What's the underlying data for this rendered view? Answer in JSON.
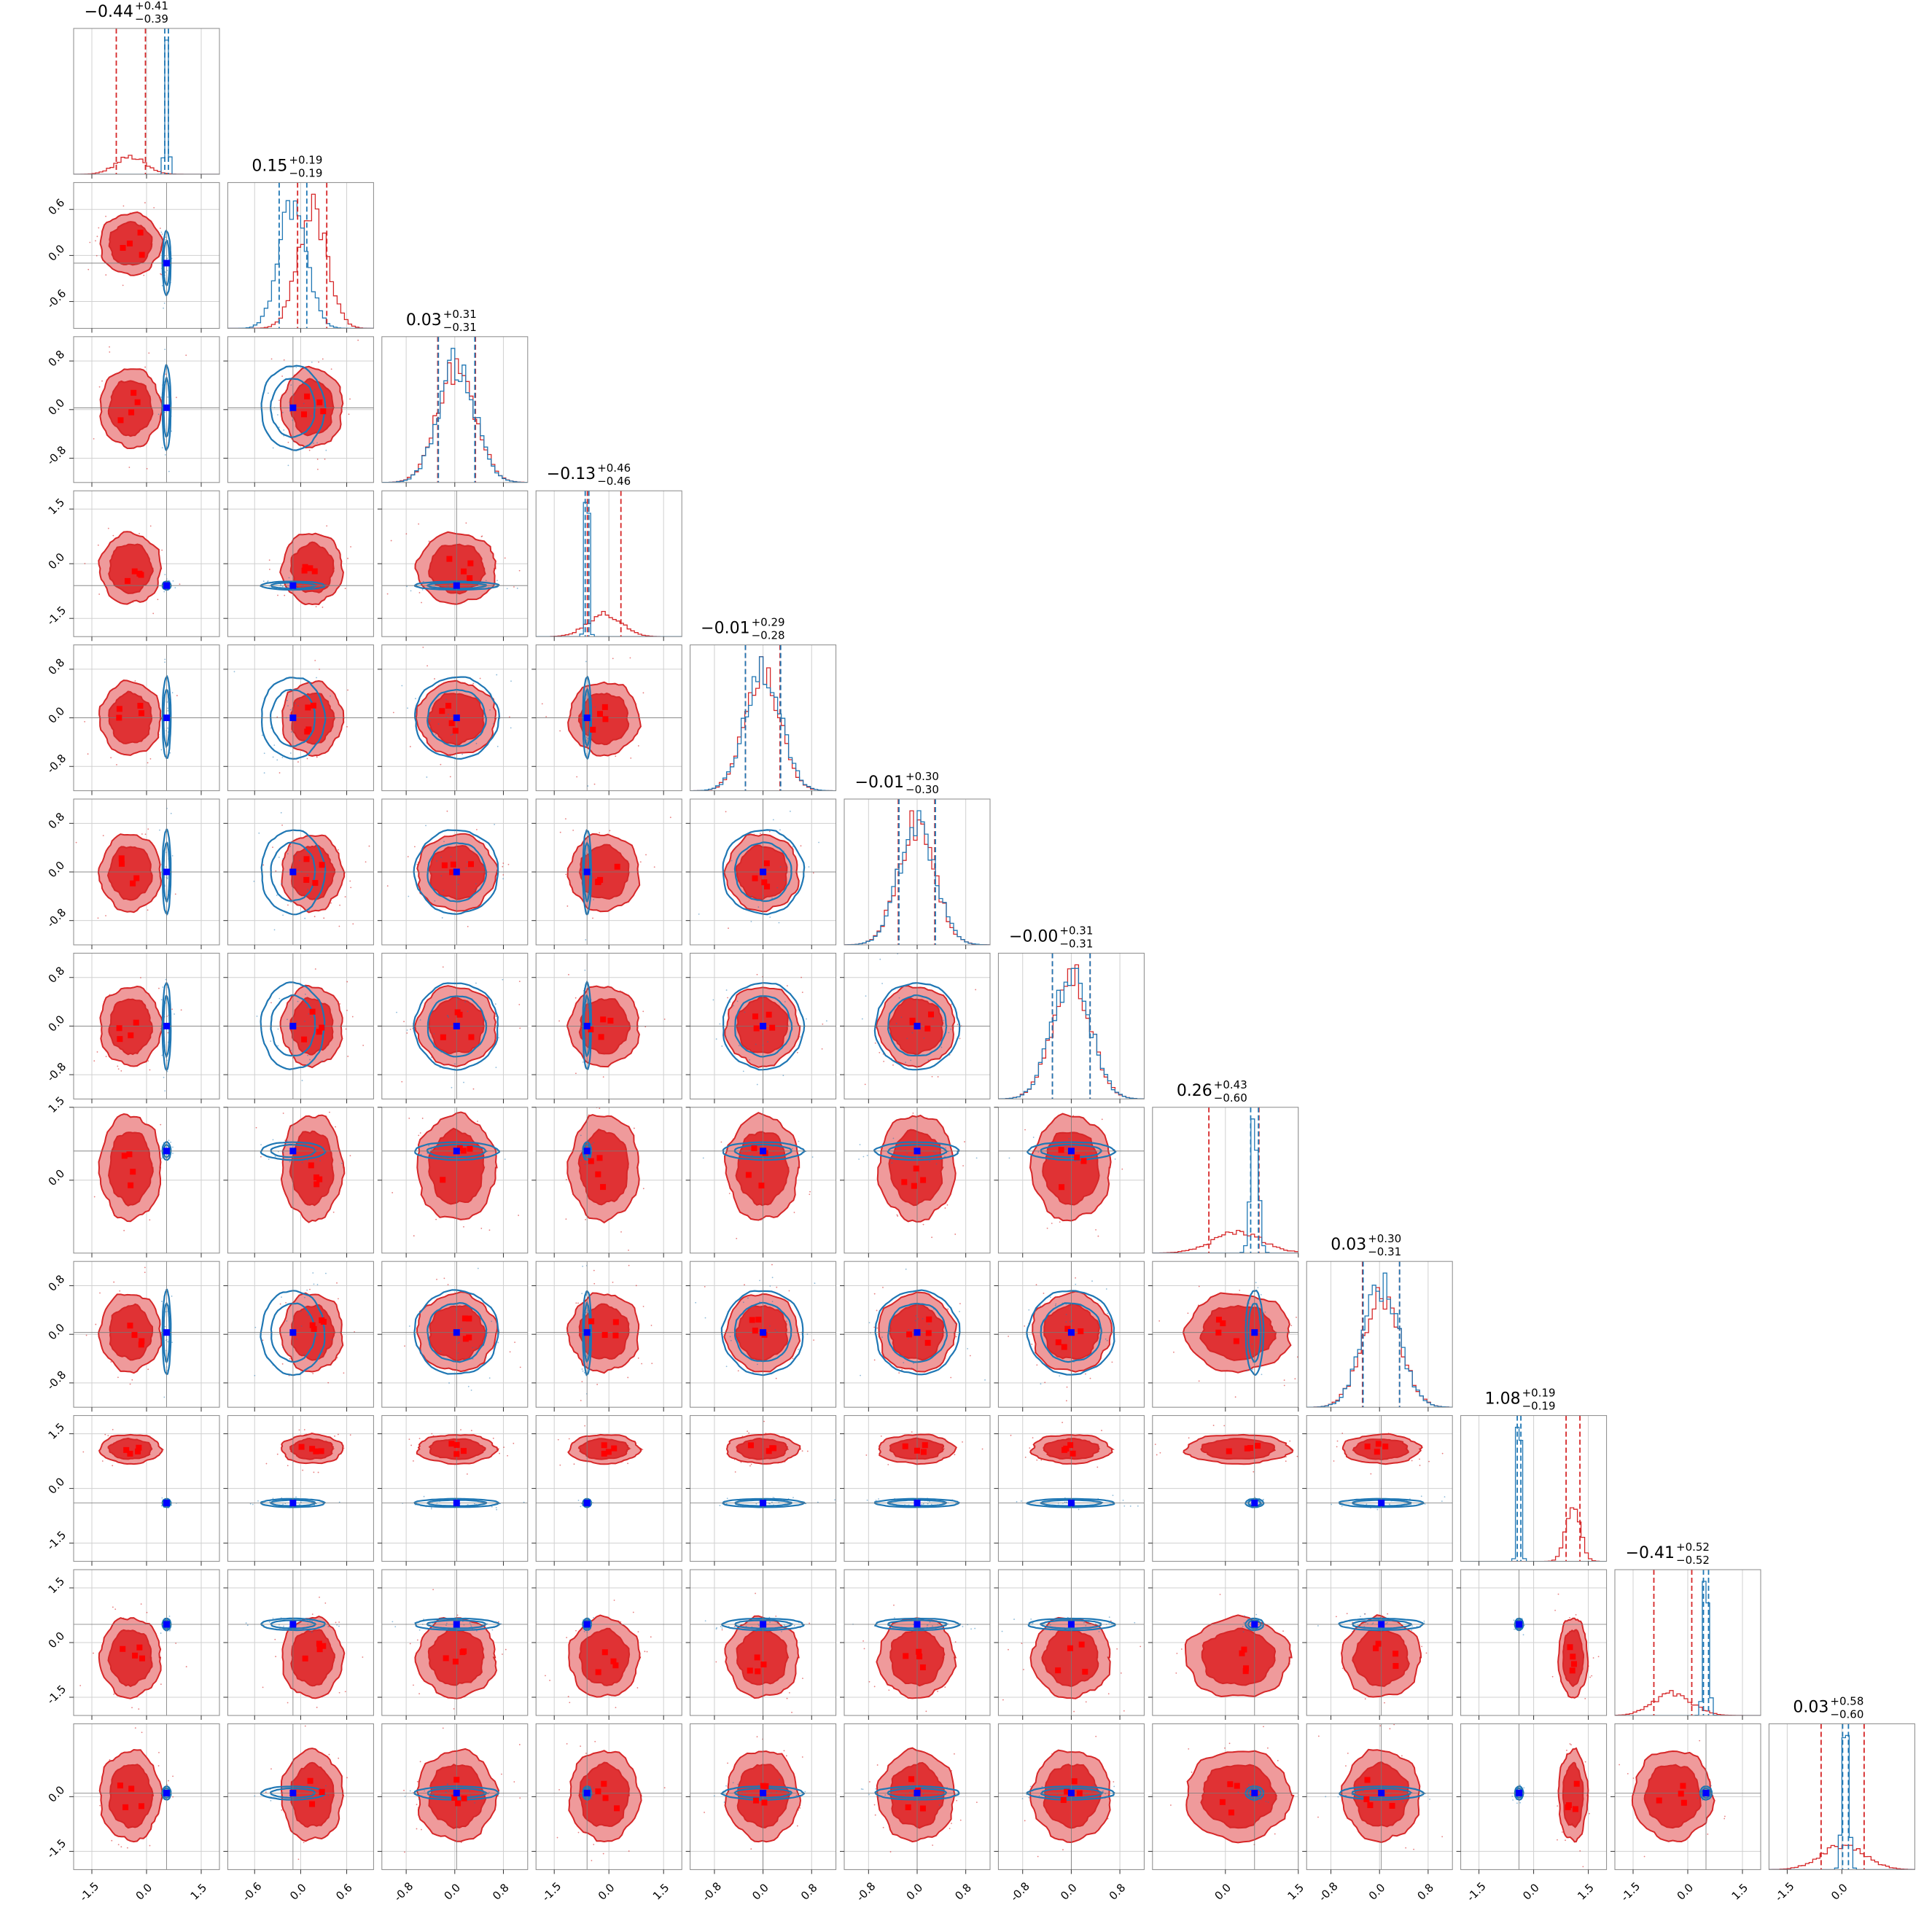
{
  "figure": {
    "type": "corner-plot",
    "n_params": 12
  },
  "colors": {
    "red": "#d62728",
    "red_inner": "#e03234",
    "red_outer": "#ef9a9b",
    "blue": "#1f77b4",
    "blue_marker": "#0000ff",
    "red_marker": "#ff0000",
    "grid": "#d0d0d0",
    "frame": "#888888"
  },
  "chart_data": {
    "type": "corner",
    "params": [
      {
        "index": 1,
        "red_median": -0.44,
        "red_plus": 0.41,
        "red_minus": 0.39,
        "blue_mean": 0.55,
        "blue_sd": 0.05,
        "truth": 0.55,
        "axis_range": [
          -2.0,
          2.0
        ],
        "ticks": [
          -1.5,
          0.0,
          1.5
        ],
        "tick_labels": [
          "-1.5",
          "0.0",
          "1.5"
        ]
      },
      {
        "index": 2,
        "red_median": 0.15,
        "red_plus": 0.19,
        "red_minus": 0.19,
        "blue_mean": -0.1,
        "blue_sd": 0.18,
        "truth": -0.1,
        "axis_range": [
          -0.95,
          0.95
        ],
        "ticks": [
          -0.6,
          0.0,
          0.6
        ],
        "tick_labels": [
          "-0.6",
          "0.0",
          "0.6"
        ]
      },
      {
        "index": 3,
        "red_median": 0.03,
        "red_plus": 0.31,
        "red_minus": 0.31,
        "blue_mean": 0.03,
        "blue_sd": 0.3,
        "truth": 0.03,
        "axis_range": [
          -1.2,
          1.2
        ],
        "ticks": [
          -0.8,
          0.0,
          0.8
        ],
        "tick_labels": [
          "-0.8",
          "0.0",
          "0.8"
        ]
      },
      {
        "index": 4,
        "red_median": -0.13,
        "red_plus": 0.46,
        "red_minus": 0.46,
        "blue_mean": -0.6,
        "blue_sd": 0.05,
        "truth": -0.6,
        "axis_range": [
          -2.0,
          2.0
        ],
        "ticks": [
          -1.5,
          0.0,
          1.5
        ],
        "tick_labels": [
          "-1.5",
          "0.0",
          "1.5"
        ]
      },
      {
        "index": 5,
        "red_median": -0.01,
        "red_plus": 0.29,
        "red_minus": 0.28,
        "blue_mean": 0.0,
        "blue_sd": 0.29,
        "truth": 0.0,
        "axis_range": [
          -1.2,
          1.2
        ],
        "ticks": [
          -0.8,
          0.0,
          0.8
        ],
        "tick_labels": [
          "-0.8",
          "0.0",
          "0.8"
        ]
      },
      {
        "index": 6,
        "red_median": -0.01,
        "red_plus": 0.3,
        "red_minus": 0.3,
        "blue_mean": 0.0,
        "blue_sd": 0.3,
        "truth": 0.0,
        "axis_range": [
          -1.2,
          1.2
        ],
        "ticks": [
          -0.8,
          0.0,
          0.8
        ],
        "tick_labels": [
          "-0.8",
          "0.0",
          "0.8"
        ]
      },
      {
        "index": 7,
        "red_median": -0.0,
        "red_plus": 0.31,
        "red_minus": 0.31,
        "blue_mean": 0.0,
        "blue_sd": 0.31,
        "truth": 0.0,
        "axis_range": [
          -1.2,
          1.2
        ],
        "ticks": [
          -0.8,
          0.0,
          0.8
        ],
        "tick_labels": [
          "-0.8",
          "0.0",
          "0.8"
        ]
      },
      {
        "index": 8,
        "red_median": 0.26,
        "red_plus": 0.43,
        "red_minus": 0.6,
        "blue_mean": 0.6,
        "blue_sd": 0.08,
        "truth": 0.6,
        "axis_range": [
          -1.5,
          1.5
        ],
        "ticks": [
          0.0,
          1.5
        ],
        "tick_labels": [
          "0.0",
          "1.5"
        ]
      },
      {
        "index": 9,
        "red_median": 0.03,
        "red_plus": 0.3,
        "red_minus": 0.31,
        "blue_mean": 0.03,
        "blue_sd": 0.3,
        "truth": 0.03,
        "axis_range": [
          -1.2,
          1.2
        ],
        "ticks": [
          -0.8,
          0.0,
          0.8
        ],
        "tick_labels": [
          "-0.8",
          "0.0",
          "0.8"
        ]
      },
      {
        "index": 10,
        "red_median": 1.08,
        "red_plus": 0.19,
        "red_minus": 0.19,
        "blue_mean": -0.4,
        "blue_sd": 0.05,
        "truth": -0.4,
        "axis_range": [
          -2.0,
          2.0
        ],
        "ticks": [
          -1.5,
          0.0,
          1.5
        ],
        "tick_labels": [
          "-1.5",
          "0.0",
          "1.5"
        ]
      },
      {
        "index": 11,
        "red_median": -0.41,
        "red_plus": 0.52,
        "red_minus": 0.52,
        "blue_mean": 0.5,
        "blue_sd": 0.07,
        "truth": 0.5,
        "axis_range": [
          -2.0,
          2.0
        ],
        "ticks": [
          -1.5,
          0.0,
          1.5
        ],
        "tick_labels": [
          "-1.5",
          "0.0",
          "1.5"
        ]
      },
      {
        "index": 12,
        "red_median": 0.03,
        "red_plus": 0.58,
        "red_minus": 0.6,
        "blue_mean": 0.1,
        "blue_sd": 0.08,
        "truth": 0.1,
        "axis_range": [
          -2.0,
          2.0
        ],
        "ticks": [
          -1.5,
          0.0
        ],
        "tick_labels": [
          "-1.5",
          "0.0"
        ]
      }
    ],
    "titles": [
      {
        "main": "−0.44",
        "sup": "+0.41",
        "sub": "−0.39"
      },
      {
        "main": "0.15",
        "sup": "+0.19",
        "sub": "−0.19"
      },
      {
        "main": "0.03",
        "sup": "+0.31",
        "sub": "−0.31"
      },
      {
        "main": "−0.13",
        "sup": "+0.46",
        "sub": "−0.46"
      },
      {
        "main": "−0.01",
        "sup": "+0.29",
        "sub": "−0.28"
      },
      {
        "main": "−0.01",
        "sup": "+0.30",
        "sub": "−0.30"
      },
      {
        "main": "−0.00",
        "sup": "+0.31",
        "sub": "−0.31"
      },
      {
        "main": "0.26",
        "sup": "+0.43",
        "sub": "−0.60"
      },
      {
        "main": "0.03",
        "sup": "+0.30",
        "sub": "−0.31"
      },
      {
        "main": "1.08",
        "sup": "+0.19",
        "sub": "−0.19"
      },
      {
        "main": "−0.41",
        "sup": "+0.52",
        "sub": "−0.52"
      },
      {
        "main": "0.03",
        "sup": "+0.58",
        "sub": "−0.60"
      }
    ],
    "grid": true,
    "legend": "none"
  }
}
